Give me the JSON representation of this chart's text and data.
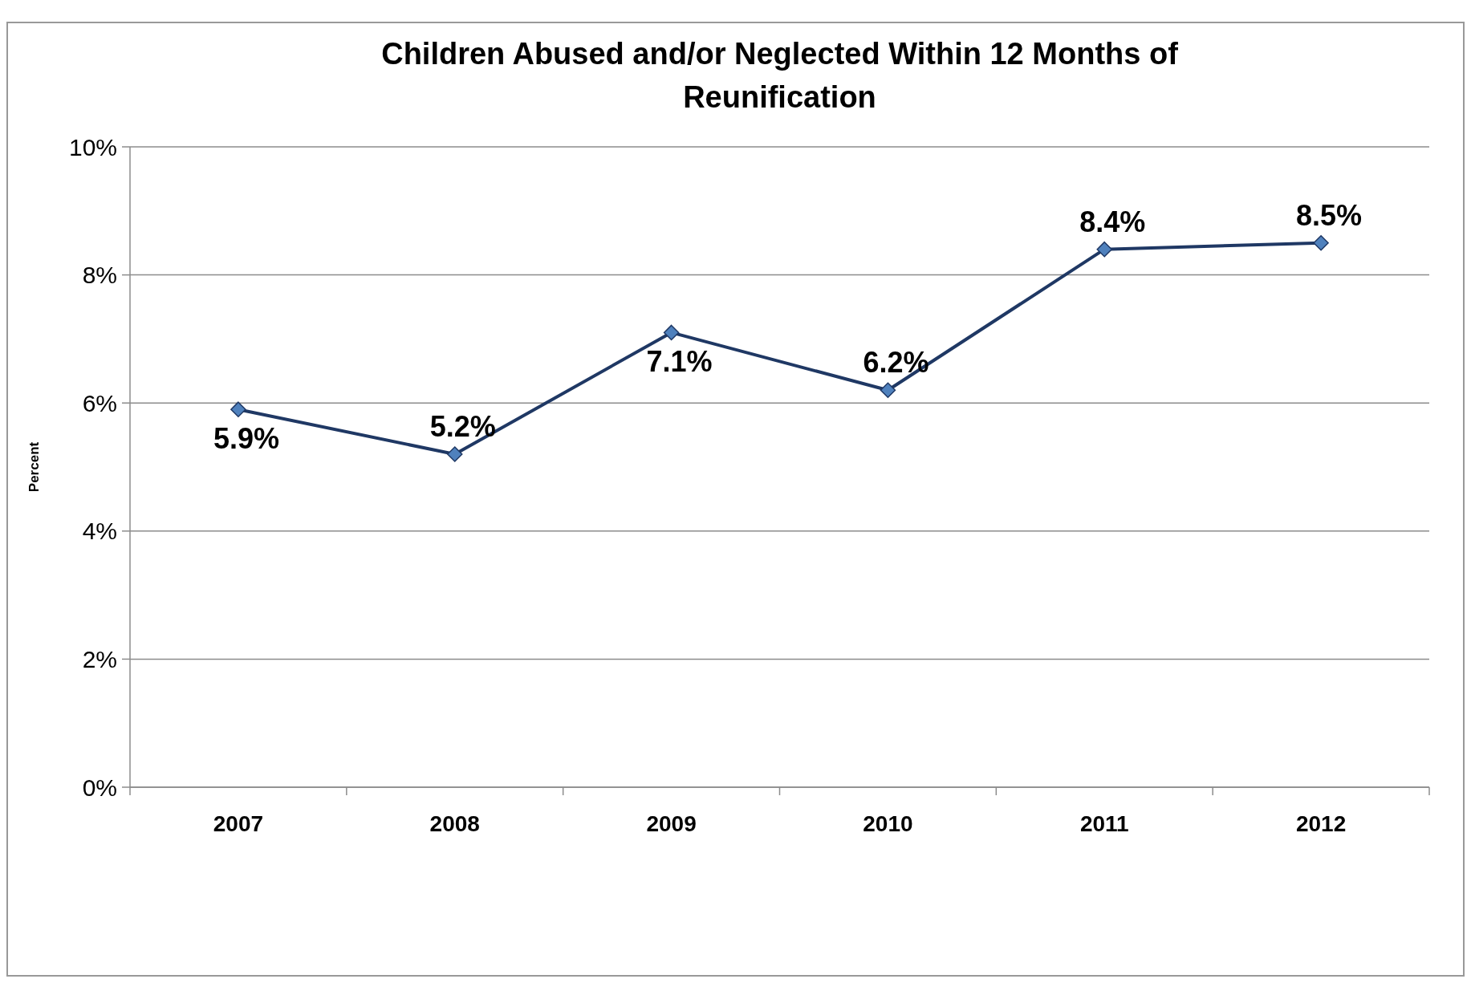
{
  "chart_data": {
    "type": "line",
    "title": "Children Abused and/or Neglected Within 12 Months of Reunification",
    "ylabel": "Percent",
    "categories": [
      "2007",
      "2008",
      "2009",
      "2010",
      "2011",
      "2012"
    ],
    "series": [
      {
        "color": "#1f3864",
        "values": [
          5.9,
          5.2,
          7.1,
          6.2,
          8.4,
          8.5
        ],
        "value_labels": [
          "5.9%",
          "5.2%",
          "7.1%",
          "6.2%",
          "8.4%",
          "8.5%"
        ]
      }
    ],
    "ylim": [
      0,
      10
    ],
    "yticks": [
      {
        "value": 0,
        "label": "0%"
      },
      {
        "value": 2,
        "label": "2%"
      },
      {
        "value": 4,
        "label": "4%"
      },
      {
        "value": 6,
        "label": "6%"
      },
      {
        "value": 8,
        "label": "8%"
      },
      {
        "value": 10,
        "label": "10%"
      }
    ],
    "grid": "y",
    "marker": "diamond",
    "line_style": "solid"
  }
}
